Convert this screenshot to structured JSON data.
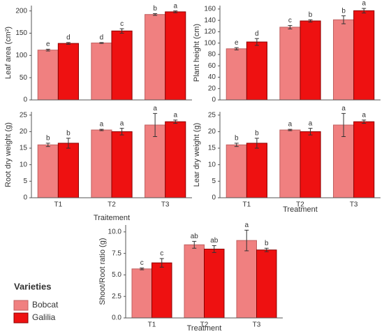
{
  "legend": {
    "title": "Varieties"
  },
  "chart_data": [
    {
      "type": "bar",
      "ylabel": "Leaf area (cm²)",
      "categories": [
        null,
        null,
        null
      ],
      "ylim": [
        0,
        212
      ],
      "yticks": [
        0,
        50,
        100,
        150,
        200
      ],
      "series": [
        {
          "name": "Bobcat",
          "color": "#f08080",
          "values": [
            112,
            128,
            192
          ],
          "errors": [
            2,
            1,
            2
          ],
          "letters": [
            "e",
            "d",
            "b"
          ]
        },
        {
          "name": "Galilia",
          "color": "#ee1111",
          "values": [
            127,
            155,
            198
          ],
          "errors": [
            2,
            5,
            2
          ],
          "letters": [
            "d",
            "c",
            "a"
          ]
        }
      ]
    },
    {
      "type": "bar",
      "ylabel": "Plant height (cm)",
      "categories": [
        null,
        null,
        null
      ],
      "ylim": [
        0,
        166
      ],
      "yticks": [
        0,
        20,
        40,
        60,
        80,
        100,
        120,
        140,
        160
      ],
      "series": [
        {
          "color": "#f08080",
          "values": [
            90,
            128,
            141
          ],
          "errors": [
            2,
            3,
            7
          ],
          "letters": [
            "e",
            "c",
            "b"
          ]
        },
        {
          "color": "#ee1111",
          "values": [
            102,
            139,
            157
          ],
          "errors": [
            6,
            2,
            4
          ],
          "letters": [
            "d",
            "b",
            "a"
          ]
        }
      ]
    },
    {
      "type": "bar",
      "ylabel": "Root dry weight (g)",
      "xlabel": "Traitement",
      "categories": [
        "T1",
        "T2",
        "T3"
      ],
      "ylim": [
        0,
        26
      ],
      "yticks": [
        0,
        5,
        10,
        15,
        20,
        25
      ],
      "series": [
        {
          "color": "#f08080",
          "values": [
            16,
            20.5,
            22
          ],
          "errors": [
            0.5,
            0.2,
            3.5
          ],
          "letters": [
            "b",
            "a",
            "a"
          ]
        },
        {
          "color": "#ee1111",
          "values": [
            16.5,
            20,
            23
          ],
          "errors": [
            1.5,
            1,
            0.5
          ],
          "letters": [
            "b",
            "a",
            "a"
          ]
        }
      ]
    },
    {
      "type": "bar",
      "ylabel": "Lear dry weight (g)",
      "xlabel": "Treatment",
      "categories": [
        "T1",
        "T2",
        "T3"
      ],
      "ylim": [
        0,
        26
      ],
      "yticks": [
        0,
        5,
        10,
        15,
        20,
        25
      ],
      "series": [
        {
          "color": "#f08080",
          "values": [
            16,
            20.5,
            22
          ],
          "errors": [
            0.5,
            0.2,
            3.5
          ],
          "letters": [
            "b",
            "a",
            "a"
          ]
        },
        {
          "color": "#ee1111",
          "values": [
            16.5,
            20,
            23
          ],
          "errors": [
            1.5,
            1,
            0.5
          ],
          "letters": [
            "b",
            "a",
            "a"
          ]
        }
      ]
    },
    {
      "type": "bar",
      "ylabel": "Shoot/Root ratio (g)",
      "xlabel": "Treatment",
      "categories": [
        "T1",
        "T2",
        "T3"
      ],
      "ylim": [
        0,
        10.8
      ],
      "yticks": [
        {
          "value": 0,
          "label": "0.0"
        },
        2.5,
        {
          "value": 5,
          "label": "5.0"
        },
        7.5,
        {
          "value": 10,
          "label": "10.0"
        }
      ],
      "series": [
        {
          "color": "#f08080",
          "values": [
            5.7,
            8.5,
            9.0
          ],
          "errors": [
            0.1,
            0.4,
            1.2
          ],
          "letters": [
            "c",
            "ab",
            "a"
          ]
        },
        {
          "color": "#ee1111",
          "values": [
            6.4,
            8.0,
            7.9
          ],
          "errors": [
            0.5,
            0.4,
            0.2
          ],
          "letters": [
            "c",
            "ab",
            "b"
          ]
        }
      ]
    }
  ]
}
